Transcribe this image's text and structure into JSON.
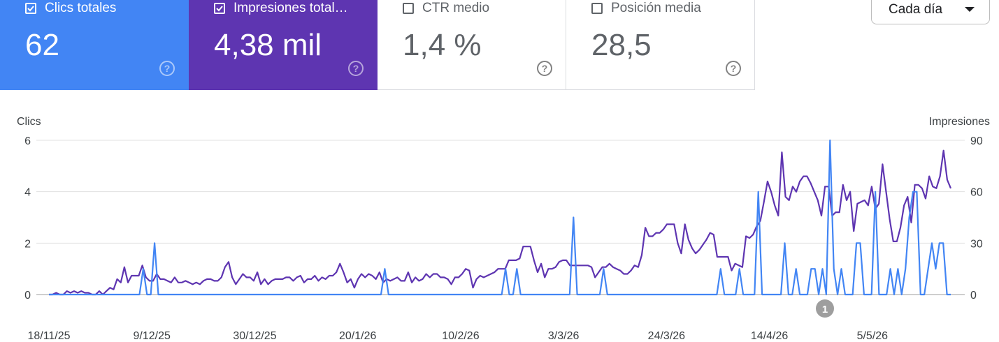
{
  "metrics": [
    {
      "label": "Clics totales",
      "value": "62",
      "checked": true
    },
    {
      "label": "Impresiones total…",
      "value": "4,38 mil",
      "checked": true
    },
    {
      "label": "CTR medio",
      "value": "1,4 %",
      "checked": false
    },
    {
      "label": "Posición media",
      "value": "28,5",
      "checked": false
    }
  ],
  "help_symbol": "?",
  "granularity": {
    "selected": "Cada día"
  },
  "annotation": {
    "label": "1"
  },
  "colors": {
    "clicks": "#4285f4",
    "impressions": "#5e35b1"
  },
  "chart_data": {
    "type": "line",
    "left_axis_title": "Clics",
    "right_axis_title": "Impresiones",
    "left_ticks": [
      "0",
      "2",
      "4",
      "6"
    ],
    "right_ticks": [
      "0",
      "30",
      "60",
      "90"
    ],
    "ylim_left": [
      0,
      6
    ],
    "ylim_right": [
      0,
      90
    ],
    "x_tick_labels": [
      "18/11/25",
      "9/12/25",
      "30/12/25",
      "20/1/26",
      "10/2/26",
      "3/3/26",
      "24/3/26",
      "14/4/26",
      "5/5/26"
    ],
    "x_start": "18/11/25",
    "x_end": "21/5/26",
    "series": [
      {
        "name": "Clics",
        "axis": "left",
        "values": [
          0,
          0,
          0,
          0,
          0,
          0,
          0,
          0,
          0,
          0,
          0,
          0,
          0,
          0,
          0,
          0,
          0,
          0,
          0,
          0,
          0,
          0,
          0,
          0,
          0,
          1,
          0,
          0,
          2,
          0,
          0,
          0,
          0,
          0,
          0,
          0,
          0,
          0,
          0,
          0,
          0,
          0,
          0,
          0,
          0,
          0,
          0,
          0,
          0,
          0,
          0,
          0,
          0,
          0,
          0,
          0,
          0,
          0,
          0,
          0,
          0,
          0,
          0,
          0,
          0,
          0,
          0,
          0,
          0,
          0,
          0,
          0,
          0,
          0,
          0,
          0,
          0,
          0,
          0,
          0,
          0,
          0,
          0,
          0,
          0,
          0,
          0,
          0,
          0,
          1,
          0,
          0,
          0,
          0,
          0,
          0,
          0,
          0,
          0,
          0,
          0,
          0,
          0,
          0,
          0,
          0,
          0,
          0,
          0,
          0,
          0,
          0,
          0,
          0,
          0,
          0,
          0,
          0,
          0,
          0,
          0,
          1,
          0,
          0,
          1,
          0,
          0,
          0,
          0,
          0,
          0,
          0,
          0,
          0,
          0,
          0,
          0,
          0,
          0,
          3,
          0,
          0,
          0,
          0,
          0,
          0,
          0,
          1,
          0,
          0,
          0,
          0,
          0,
          0,
          0,
          0,
          0,
          0,
          0,
          0,
          0,
          0,
          0,
          0,
          0,
          0,
          0,
          0,
          0,
          0,
          0,
          0,
          0,
          0,
          0,
          0,
          0,
          0,
          1,
          0,
          0,
          0,
          0,
          1,
          0,
          0,
          0,
          0,
          4,
          0,
          0,
          0,
          0,
          0,
          0,
          2,
          0,
          0,
          1,
          0,
          0,
          0,
          1,
          1,
          0,
          1,
          0,
          6,
          1,
          0,
          1,
          0,
          0,
          0,
          2,
          2,
          0,
          0,
          0,
          4,
          0,
          0,
          0,
          1,
          0,
          1,
          0,
          1,
          3,
          4,
          4,
          0,
          0,
          1,
          2,
          1,
          2,
          2,
          0,
          0
        ]
      },
      {
        "name": "Impresiones",
        "axis": "right",
        "values": [
          0,
          0,
          1,
          0,
          0,
          2,
          1,
          2,
          1,
          2,
          1,
          1,
          0,
          0,
          2,
          0,
          2,
          4,
          3,
          9,
          7,
          16,
          7,
          11,
          11,
          11,
          17,
          10,
          8,
          8,
          12,
          9,
          9,
          8,
          7,
          10,
          7,
          7,
          8,
          7,
          6,
          7,
          6,
          8,
          9,
          9,
          8,
          8,
          10,
          16,
          19,
          10,
          6,
          9,
          12,
          10,
          10,
          8,
          13,
          6,
          9,
          6,
          8,
          9,
          9,
          9,
          10,
          10,
          8,
          10,
          11,
          7,
          9,
          9,
          11,
          8,
          10,
          9,
          11,
          11,
          13,
          18,
          13,
          7,
          9,
          4,
          9,
          12,
          10,
          12,
          11,
          9,
          13,
          7,
          9,
          8,
          9,
          10,
          8,
          8,
          13,
          7,
          10,
          8,
          9,
          12,
          10,
          12,
          12,
          10,
          10,
          9,
          6,
          10,
          10,
          12,
          15,
          14,
          4,
          9,
          11,
          10,
          11,
          12,
          13,
          15,
          15,
          15,
          20,
          20,
          20,
          21,
          28,
          28,
          28,
          20,
          13,
          18,
          10,
          15,
          15,
          16,
          19,
          20,
          20,
          17,
          17,
          17,
          17,
          17,
          17,
          16,
          10,
          13,
          16,
          16,
          18,
          16,
          15,
          14,
          12,
          12,
          14,
          17,
          16,
          23,
          39,
          34,
          34,
          36,
          36,
          38,
          41,
          41,
          41,
          30,
          24,
          41,
          32,
          27,
          24,
          26,
          29,
          32,
          36,
          35,
          22,
          22,
          22,
          22,
          14,
          18,
          17,
          16,
          34,
          33,
          35,
          40,
          43,
          54,
          66,
          60,
          52,
          46,
          83,
          57,
          55,
          63,
          60,
          66,
          69,
          69,
          65,
          60,
          55,
          46,
          63,
          63,
          46,
          48,
          48,
          64,
          55,
          60,
          37,
          53,
          54,
          55,
          52,
          63,
          50,
          53,
          76,
          60,
          44,
          31,
          31,
          39,
          52,
          57,
          42,
          64,
          64,
          62,
          56,
          69,
          63,
          62,
          69,
          84,
          67,
          62
        ]
      }
    ]
  }
}
